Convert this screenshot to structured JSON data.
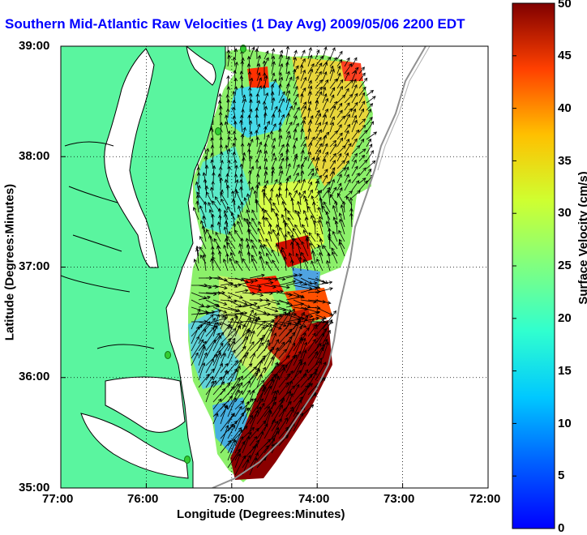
{
  "title": "Southern Mid-Atlantic Raw Velocities (1 Day Avg) 2009/05/06 2200 EDT",
  "xaxis": {
    "label": "Longitude (Degrees:Minutes)",
    "ticks": [
      "77:00",
      "76:00",
      "75:00",
      "74:00",
      "73:00",
      "72:00"
    ]
  },
  "yaxis": {
    "label": "Latitude (Degrees:Minutes)",
    "ticks": [
      "39:00",
      "38:00",
      "37:00",
      "36:00",
      "35:00"
    ]
  },
  "colorbar": {
    "label": "Surface Velocity (cm/s)",
    "ticks": [
      "50",
      "45",
      "40",
      "35",
      "30",
      "25",
      "20",
      "15",
      "10",
      "5",
      "0"
    ],
    "range": [
      0,
      50
    ],
    "colormap": "jet"
  },
  "colors": {
    "land": "#5af59f",
    "title": "#0000ff",
    "site_marker": "#33cc33",
    "bathymetry": "#909090"
  },
  "map_extent": {
    "lon": [
      -77,
      -72
    ],
    "lat": [
      35,
      39
    ]
  }
}
